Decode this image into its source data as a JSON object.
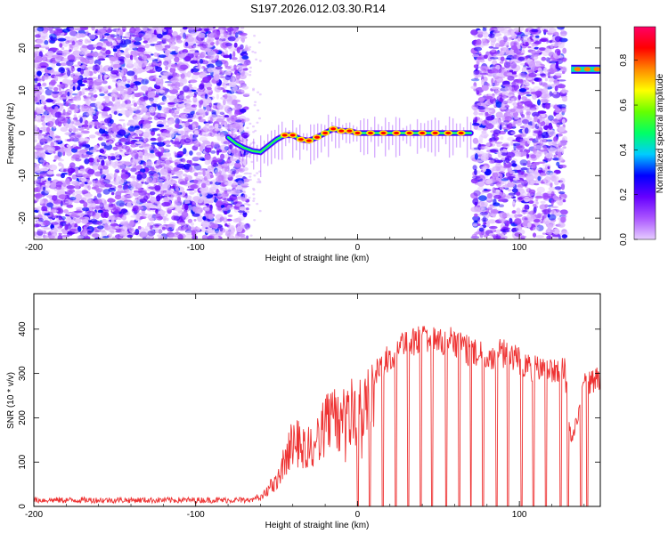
{
  "title": "S197.2026.012.03.30.R14",
  "chart_data": [
    {
      "type": "heatmap",
      "xlabel": "Height of straight line (km)",
      "ylabel": "Frequency (Hz)",
      "xlim": [
        -200,
        150
      ],
      "ylim": [
        -25,
        25
      ],
      "x_ticks": [
        -200,
        -100,
        0,
        100
      ],
      "y_ticks": [
        -20,
        -10,
        0,
        10,
        20
      ],
      "colorbar": {
        "label": "Normalized spectral amplitude",
        "range": [
          0,
          0.95
        ],
        "ticks": [
          0.0,
          0.2,
          0.4,
          0.6,
          0.8
        ],
        "colormap": [
          "#e6ccff",
          "#aa55ff",
          "#6600ff",
          "#0000ff",
          "#00ccff",
          "#00ff66",
          "#66ff00",
          "#ffff00",
          "#ff8800",
          "#ff0000",
          "#ff0066"
        ]
      },
      "noise_regions": [
        {
          "x": [
            -200,
            -68
          ],
          "y": [
            -25,
            25
          ]
        },
        {
          "x": [
            72,
            128
          ],
          "y": [
            -25,
            25
          ]
        }
      ],
      "ridge": {
        "x": [
          -80,
          -75,
          -70,
          -65,
          -60,
          -55,
          -50,
          -45,
          -40,
          -35,
          -30,
          -25,
          -20,
          -15,
          -10,
          -5,
          0,
          10,
          20,
          30,
          40,
          50,
          60,
          70
        ],
        "y": [
          -1,
          -2.5,
          -3.5,
          -4.2,
          -4.5,
          -3,
          -1.5,
          -0.5,
          -0.5,
          -1.5,
          -1.8,
          -1,
          0,
          1,
          0.5,
          0.5,
          0,
          0,
          0,
          0,
          0,
          0,
          0,
          0
        ]
      },
      "hot_spots_x": [
        -45,
        -40,
        -35,
        -30,
        -25,
        -20,
        -15,
        -10,
        -5,
        0,
        8,
        16,
        24,
        32,
        40,
        48,
        56,
        64
      ],
      "tone_band": {
        "x": [
          132,
          150
        ],
        "y": 15
      }
    },
    {
      "type": "line",
      "xlabel": "Height of straight line (km)",
      "ylabel": "SNR (10 * v/v)",
      "xlim": [
        -200,
        150
      ],
      "ylim": [
        0,
        480
      ],
      "x_ticks": [
        -200,
        -100,
        0,
        100
      ],
      "y_ticks": [
        0,
        100,
        200,
        300,
        400
      ],
      "series": [
        {
          "color": "#ee3333",
          "envelope_x": [
            -200,
            -70,
            -60,
            -50,
            -40,
            -30,
            -20,
            -10,
            0,
            10,
            20,
            30,
            40,
            50,
            60,
            70,
            80,
            90,
            100,
            110,
            120,
            128,
            132,
            140,
            150
          ],
          "envelope_y": [
            15,
            15,
            30,
            80,
            200,
            180,
            250,
            280,
            300,
            330,
            370,
            400,
            420,
            400,
            410,
            380,
            370,
            380,
            360,
            340,
            340,
            340,
            160,
            300,
            320
          ]
        }
      ]
    }
  ]
}
